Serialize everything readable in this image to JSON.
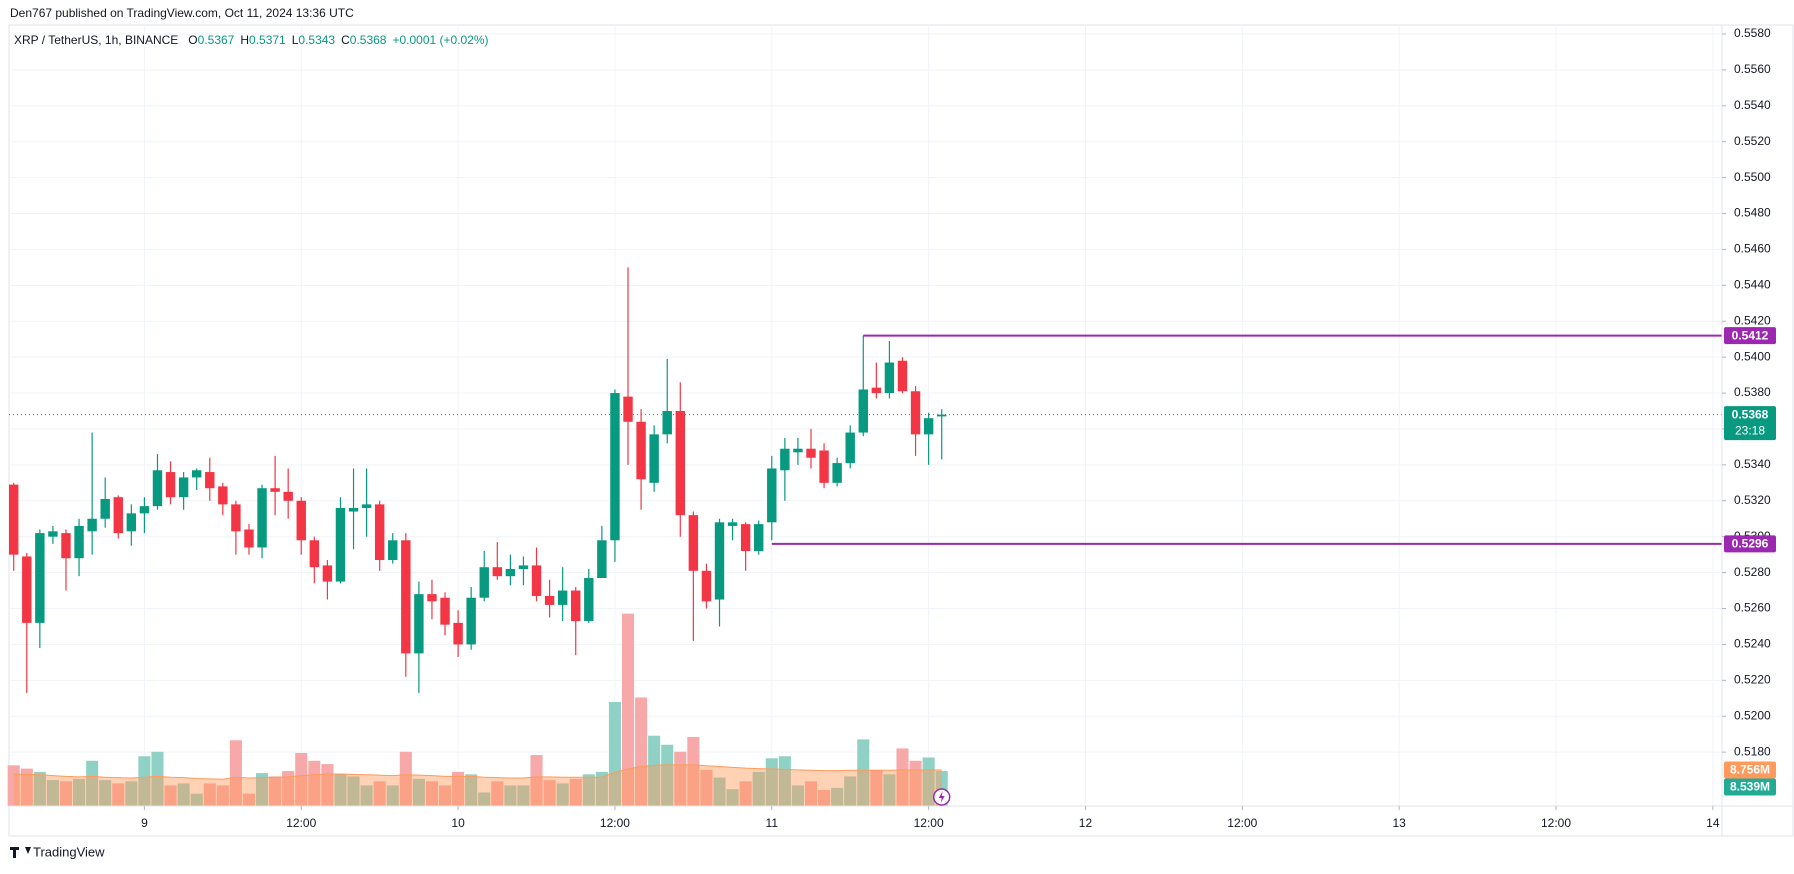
{
  "published": "Den767 published on TradingView.com, Oct 11, 2024 13:36 UTC",
  "footer": "TradingView",
  "chart_data": {
    "type": "candlestick",
    "symbol": "XRP / TetherUS, 1h, BINANCE",
    "ohlc_letters": [
      "O",
      "H",
      "L",
      "C"
    ],
    "change": "+0.0001 (+0.02%)",
    "countdown": "23:18",
    "up_color": "#089981",
    "down_color": "#f23645",
    "grid": true,
    "xlim": [
      -0.36,
      130.7
    ],
    "xticks": [
      {
        "value": 10,
        "label": "9"
      },
      {
        "value": 22,
        "label": "12:00"
      },
      {
        "value": 34,
        "label": "10"
      },
      {
        "value": 46,
        "label": "12:00"
      },
      {
        "value": 58,
        "label": "11"
      },
      {
        "value": 70,
        "label": "12:00"
      },
      {
        "value": 82,
        "label": "12"
      },
      {
        "value": 94,
        "label": "12:00"
      },
      {
        "value": 106,
        "label": "13"
      },
      {
        "value": 118,
        "label": "12:00"
      },
      {
        "value": 130,
        "label": "14"
      }
    ],
    "ylim": [
      0.515,
      0.5585
    ],
    "yticks": [
      {
        "value": 0.518,
        "label": "0.5180"
      },
      {
        "value": 0.52,
        "label": "0.5200"
      },
      {
        "value": 0.522,
        "label": "0.5220"
      },
      {
        "value": 0.524,
        "label": "0.5240"
      },
      {
        "value": 0.526,
        "label": "0.5260"
      },
      {
        "value": 0.528,
        "label": "0.5280"
      },
      {
        "value": 0.53,
        "label": "0.5300"
      },
      {
        "value": 0.532,
        "label": "0.5320"
      },
      {
        "value": 0.534,
        "label": "0.5340"
      },
      {
        "value": 0.536,
        "label": "0.5360"
      },
      {
        "value": 0.538,
        "label": "0.5380"
      },
      {
        "value": 0.54,
        "label": "0.5400"
      },
      {
        "value": 0.542,
        "label": "0.5420"
      },
      {
        "value": 0.544,
        "label": "0.5440"
      },
      {
        "value": 0.546,
        "label": "0.5460"
      },
      {
        "value": 0.548,
        "label": "0.5480"
      },
      {
        "value": 0.55,
        "label": "0.5500"
      },
      {
        "value": 0.552,
        "label": "0.5520"
      },
      {
        "value": 0.554,
        "label": "0.5540"
      },
      {
        "value": 0.556,
        "label": "0.5560"
      },
      {
        "value": 0.558,
        "label": "0.5580"
      }
    ],
    "open": [
      0.5329,
      0.5289,
      0.5252,
      0.53,
      0.5302,
      0.5288,
      0.5303,
      0.531,
      0.5322,
      0.5303,
      0.5313,
      0.5317,
      0.5336,
      0.5322,
      0.5333,
      0.5336,
      0.5328,
      0.5318,
      0.5304,
      0.5294,
      0.5327,
      0.5325,
      0.532,
      0.5298,
      0.5284,
      0.5275,
      0.5314,
      0.5316,
      0.5318,
      0.5287,
      0.5298,
      0.5235,
      0.5268,
      0.5266,
      0.5252,
      0.524,
      0.5266,
      0.5283,
      0.5278,
      0.5282,
      0.5284,
      0.5267,
      0.5262,
      0.527,
      0.5253,
      0.5277,
      0.5298,
      0.5378,
      0.5364,
      0.533,
      0.5357,
      0.537,
      0.5312,
      0.5281,
      0.5265,
      0.5306,
      0.5307,
      0.5292,
      0.5308,
      0.5337,
      0.5347,
      0.5349,
      0.5348,
      0.533,
      0.5341,
      0.5358,
      0.5383,
      0.538,
      0.5398,
      0.5381,
      0.5357,
      0.5367
    ],
    "high": [
      0.533,
      0.5291,
      0.5304,
      0.5306,
      0.5304,
      0.531,
      0.5358,
      0.5333,
      0.5323,
      0.5318,
      0.5322,
      0.5346,
      0.5342,
      0.5336,
      0.5338,
      0.5344,
      0.533,
      0.532,
      0.5307,
      0.5329,
      0.5345,
      0.5338,
      0.5322,
      0.53,
      0.5287,
      0.5322,
      0.5338,
      0.5338,
      0.532,
      0.5302,
      0.5302,
      0.5275,
      0.5276,
      0.5269,
      0.5259,
      0.5272,
      0.5292,
      0.5297,
      0.529,
      0.5289,
      0.5294,
      0.5276,
      0.5283,
      0.5272,
      0.5282,
      0.5306,
      0.5382,
      0.545,
      0.5371,
      0.5362,
      0.5399,
      0.5386,
      0.5314,
      0.5285,
      0.531,
      0.531,
      0.5308,
      0.5309,
      0.5345,
      0.5355,
      0.5355,
      0.536,
      0.5352,
      0.5344,
      0.5362,
      0.5412,
      0.5397,
      0.5409,
      0.54,
      0.5384,
      0.5369,
      0.5371
    ],
    "low": [
      0.5281,
      0.5213,
      0.5238,
      0.5296,
      0.527,
      0.5278,
      0.529,
      0.5305,
      0.5299,
      0.5295,
      0.5302,
      0.5315,
      0.5318,
      0.5315,
      0.5326,
      0.532,
      0.5312,
      0.529,
      0.529,
      0.5288,
      0.5312,
      0.531,
      0.529,
      0.5274,
      0.5265,
      0.5274,
      0.5293,
      0.53,
      0.5281,
      0.5285,
      0.5222,
      0.5213,
      0.5254,
      0.5245,
      0.5233,
      0.5237,
      0.5264,
      0.5276,
      0.5273,
      0.5273,
      0.5264,
      0.5255,
      0.5253,
      0.5234,
      0.5252,
      0.5277,
      0.5286,
      0.534,
      0.5315,
      0.5325,
      0.5352,
      0.53,
      0.5242,
      0.526,
      0.525,
      0.5298,
      0.5281,
      0.529,
      0.5298,
      0.532,
      0.534,
      0.5338,
      0.5327,
      0.5328,
      0.5338,
      0.5356,
      0.5377,
      0.5377,
      0.538,
      0.5345,
      0.534,
      0.5343
    ],
    "close": [
      0.529,
      0.5252,
      0.5302,
      0.5303,
      0.5288,
      0.5306,
      0.531,
      0.5321,
      0.5302,
      0.5313,
      0.5317,
      0.5337,
      0.5322,
      0.5333,
      0.5337,
      0.5327,
      0.5318,
      0.5303,
      0.5294,
      0.5327,
      0.5325,
      0.532,
      0.5298,
      0.5283,
      0.5275,
      0.5316,
      0.5316,
      0.5318,
      0.5287,
      0.5298,
      0.5235,
      0.5268,
      0.5264,
      0.5251,
      0.524,
      0.5266,
      0.5283,
      0.5278,
      0.5282,
      0.5284,
      0.5267,
      0.5262,
      0.527,
      0.5253,
      0.5277,
      0.5298,
      0.538,
      0.5364,
      0.5332,
      0.5357,
      0.537,
      0.5312,
      0.5281,
      0.5264,
      0.5308,
      0.5308,
      0.5292,
      0.5307,
      0.5338,
      0.5349,
      0.5349,
      0.5344,
      0.533,
      0.5341,
      0.5358,
      0.5382,
      0.538,
      0.5397,
      0.5381,
      0.5357,
      0.5366,
      0.5368
    ],
    "hlines": [
      {
        "value": 0.5412,
        "x_start": 65,
        "color": "#9c27b0"
      },
      {
        "value": 0.5296,
        "x_start": 58,
        "color": "#9c27b0"
      }
    ],
    "volume": {
      "ylim": [
        0,
        190
      ],
      "up_color": "#8fd1c5",
      "down_color": "#f7a8a8",
      "ma_color": "#ff9a5c",
      "values": [
        9.9,
        9.1,
        8.3,
        6.3,
        6.0,
        6.6,
        11.0,
        6.3,
        5.5,
        6.0,
        12.1,
        13.2,
        5.0,
        5.5,
        3.0,
        5.5,
        5.0,
        16.0,
        3.0,
        8.0,
        7.2,
        8.5,
        12.9,
        11.0,
        10.2,
        7.7,
        7.2,
        5.0,
        6.0,
        5.0,
        13.2,
        6.6,
        6.0,
        5.0,
        8.3,
        7.7,
        3.3,
        6.0,
        5.0,
        5.0,
        12.4,
        6.3,
        5.5,
        6.6,
        7.7,
        8.3,
        25.3,
        46.8,
        26.4,
        17.1,
        14.9,
        13.2,
        16.8,
        8.8,
        6.9,
        4.1,
        6.0,
        8.3,
        11.6,
        12.1,
        5.0,
        6.0,
        3.9,
        4.4,
        7.2,
        16.2,
        8.8,
        7.7,
        14.0,
        11.0,
        11.8,
        8.539
      ],
      "value_label": "8.539M",
      "ma": [
        7.8,
        7.7,
        7.6,
        7.4,
        7.2,
        7.1,
        7.2,
        7.0,
        6.9,
        6.8,
        7.0,
        7.2,
        7.0,
        6.9,
        6.7,
        6.6,
        6.5,
        7.0,
        6.8,
        6.9,
        7.0,
        7.1,
        7.4,
        7.6,
        7.8,
        7.8,
        7.7,
        7.6,
        7.5,
        7.4,
        7.6,
        7.5,
        7.4,
        7.2,
        7.2,
        7.2,
        7.0,
        6.9,
        6.8,
        6.8,
        7.1,
        7.1,
        7.0,
        7.0,
        7.0,
        7.0,
        8.2,
        9.0,
        9.6,
        9.9,
        10.0,
        10.0,
        10.0,
        9.8,
        9.6,
        9.4,
        9.2,
        9.1,
        9.0,
        8.9,
        8.8,
        8.7,
        8.6,
        8.6,
        8.7,
        8.7,
        8.7,
        8.7,
        8.8,
        8.8,
        8.8,
        8.756
      ],
      "ma_label": "8.756M"
    }
  }
}
